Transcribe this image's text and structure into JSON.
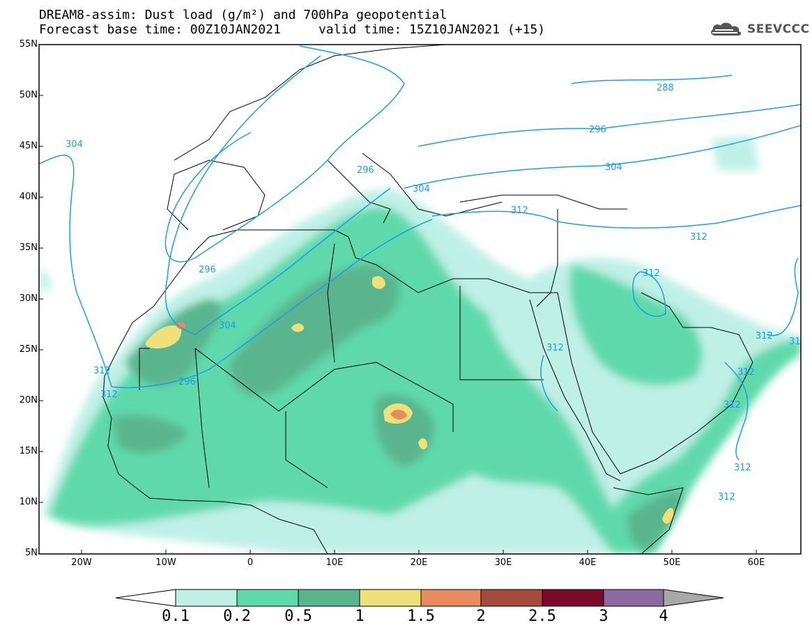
{
  "header": {
    "title_line1": "DREAM8-assim: Dust load (g/m²) and 700hPa geopotential",
    "title_line2": "Forecast base time: 00Z10JAN2021     valid time: 15Z10JAN2021 (+15)",
    "logo_text": "SEEVCCC",
    "logo_icon": "cloud-icon"
  },
  "axes": {
    "lat_labels": [
      "55N",
      "50N",
      "45N",
      "40N",
      "35N",
      "30N",
      "25N",
      "20N",
      "15N",
      "10N",
      "5N"
    ],
    "lon_labels": [
      "20W",
      "10W",
      "0",
      "10E",
      "20E",
      "30E",
      "40E",
      "50E",
      "60E"
    ]
  },
  "contour_labels": [
    "288",
    "296",
    "304",
    "312",
    "296",
    "304",
    "312",
    "296",
    "304",
    "312",
    "312",
    "312",
    "312",
    "312",
    "312",
    "312",
    "312",
    "312",
    "31"
  ],
  "colorbar": {
    "levels": [
      "0.1",
      "0.2",
      "0.5",
      "1",
      "1.5",
      "2",
      "2.5",
      "3",
      "4"
    ],
    "colors": [
      "#bff0e6",
      "#5fd9ac",
      "#5ab58e",
      "#f0e07a",
      "#e88c60",
      "#a54a3c",
      "#7a0a2a",
      "#8a6aa0",
      "#a8a8a8"
    ]
  },
  "colors": {
    "geopotential_line": "#1e9ce6",
    "coast": "#000000"
  }
}
